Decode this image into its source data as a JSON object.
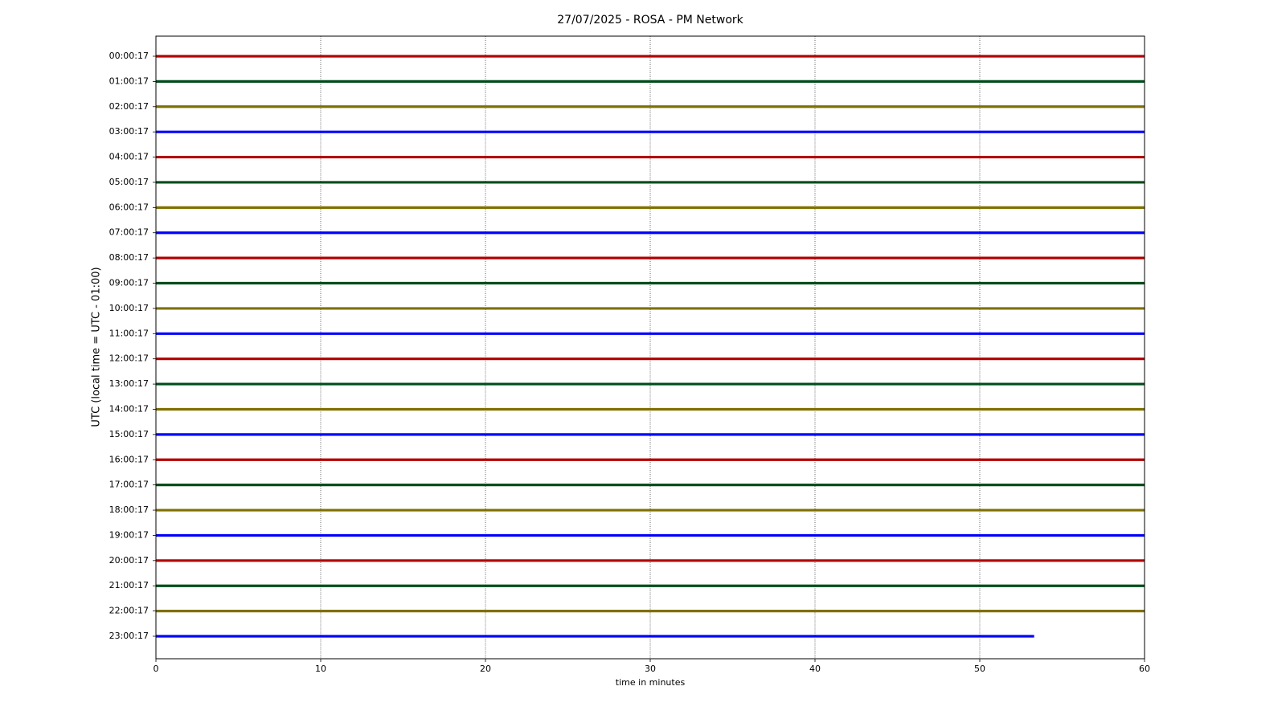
{
  "chart_data": {
    "type": "helicorder",
    "title": "27/07/2025 - ROSA - PM Network",
    "xlabel": "time in minutes",
    "ylabel": "UTC (local time = UTC - 01:00)",
    "xlim": [
      0,
      60
    ],
    "xticks": [
      0,
      10,
      20,
      30,
      40,
      50,
      60
    ],
    "grid": "x",
    "series": [
      {
        "name": "00:00:17",
        "color": "#b30000",
        "x": [
          0,
          60
        ],
        "values": [
          0,
          0
        ]
      },
      {
        "name": "01:00:17",
        "color": "#004d1a",
        "x": [
          0,
          60
        ],
        "values": [
          0,
          0
        ]
      },
      {
        "name": "02:00:17",
        "color": "#807000",
        "x": [
          0,
          60
        ],
        "values": [
          0,
          0
        ]
      },
      {
        "name": "03:00:17",
        "color": "#0000ff",
        "x": [
          0,
          60
        ],
        "values": [
          0,
          0
        ]
      },
      {
        "name": "04:00:17",
        "color": "#b30000",
        "x": [
          0,
          60
        ],
        "values": [
          0,
          0
        ]
      },
      {
        "name": "05:00:17",
        "color": "#004d1a",
        "x": [
          0,
          60
        ],
        "values": [
          0,
          0
        ]
      },
      {
        "name": "06:00:17",
        "color": "#807000",
        "x": [
          0,
          60
        ],
        "values": [
          0,
          0
        ]
      },
      {
        "name": "07:00:17",
        "color": "#0000ff",
        "x": [
          0,
          60
        ],
        "values": [
          0,
          0
        ]
      },
      {
        "name": "08:00:17",
        "color": "#b30000",
        "x": [
          0,
          60
        ],
        "values": [
          0,
          0
        ]
      },
      {
        "name": "09:00:17",
        "color": "#004d1a",
        "x": [
          0,
          60
        ],
        "values": [
          0,
          0
        ]
      },
      {
        "name": "10:00:17",
        "color": "#807000",
        "x": [
          0,
          60
        ],
        "values": [
          0,
          0
        ]
      },
      {
        "name": "11:00:17",
        "color": "#0000ff",
        "x": [
          0,
          60
        ],
        "values": [
          0,
          0
        ]
      },
      {
        "name": "12:00:17",
        "color": "#b30000",
        "x": [
          0,
          60
        ],
        "values": [
          0,
          0
        ]
      },
      {
        "name": "13:00:17",
        "color": "#004d1a",
        "x": [
          0,
          60
        ],
        "values": [
          0,
          0
        ]
      },
      {
        "name": "14:00:17",
        "color": "#807000",
        "x": [
          0,
          60
        ],
        "values": [
          0,
          0
        ]
      },
      {
        "name": "15:00:17",
        "color": "#0000ff",
        "x": [
          0,
          60
        ],
        "values": [
          0,
          0
        ]
      },
      {
        "name": "16:00:17",
        "color": "#b30000",
        "x": [
          0,
          60
        ],
        "values": [
          0,
          0
        ]
      },
      {
        "name": "17:00:17",
        "color": "#004d1a",
        "x": [
          0,
          60
        ],
        "values": [
          0,
          0
        ]
      },
      {
        "name": "18:00:17",
        "color": "#807000",
        "x": [
          0,
          60
        ],
        "values": [
          0,
          0
        ]
      },
      {
        "name": "19:00:17",
        "color": "#0000ff",
        "x": [
          0,
          60
        ],
        "values": [
          0,
          0
        ]
      },
      {
        "name": "20:00:17",
        "color": "#b30000",
        "x": [
          0,
          60
        ],
        "values": [
          0,
          0
        ]
      },
      {
        "name": "21:00:17",
        "color": "#004d1a",
        "x": [
          0,
          60
        ],
        "values": [
          0,
          0
        ]
      },
      {
        "name": "22:00:17",
        "color": "#807000",
        "x": [
          0,
          60
        ],
        "values": [
          0,
          0
        ]
      },
      {
        "name": "23:00:17",
        "color": "#0000ff",
        "x": [
          0,
          53.3
        ],
        "values": [
          0,
          0
        ]
      }
    ]
  }
}
